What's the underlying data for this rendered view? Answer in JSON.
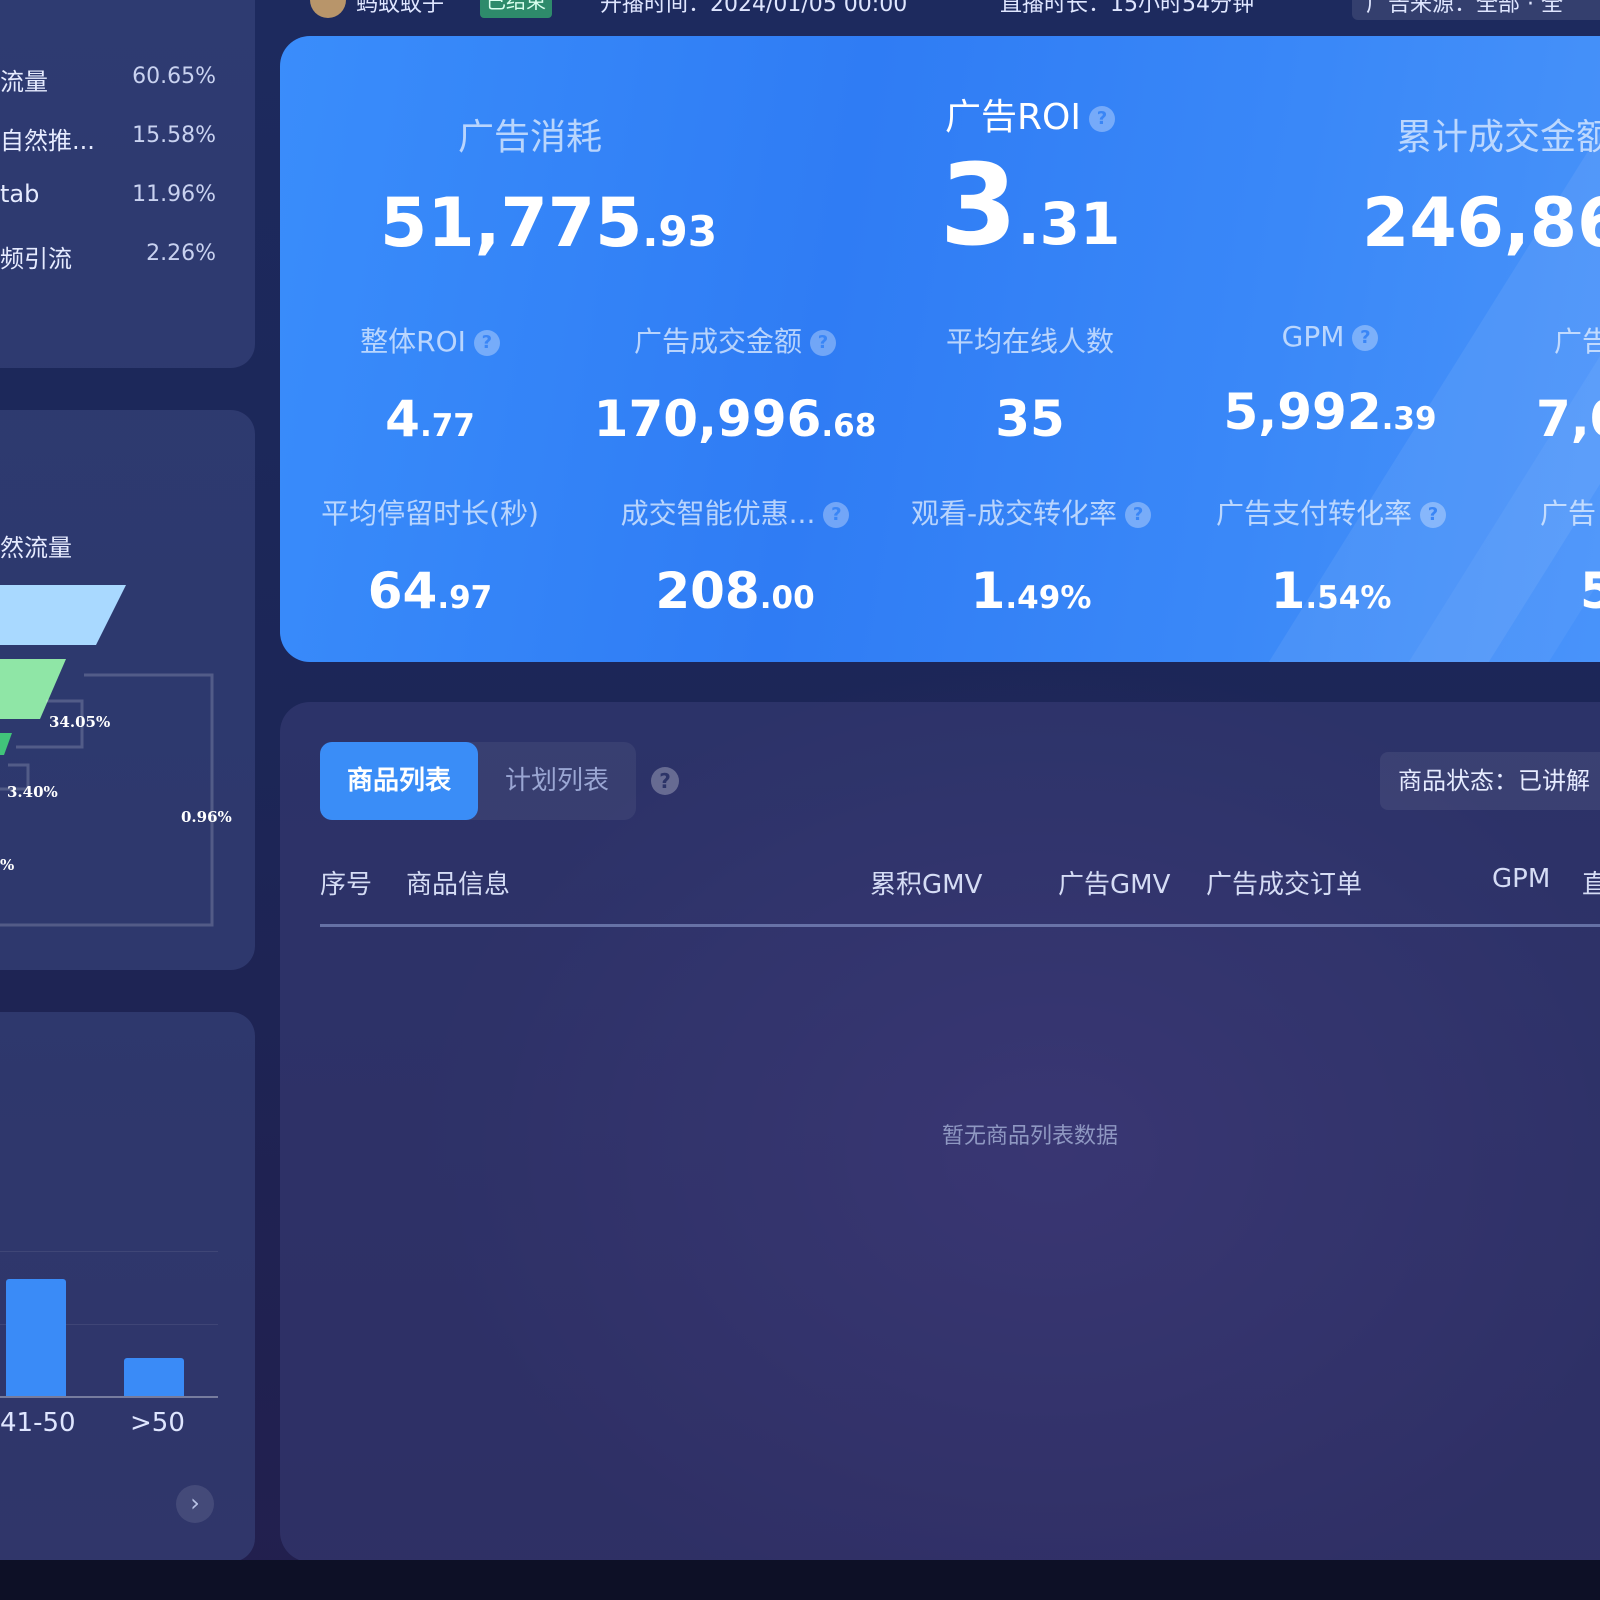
{
  "topbar": {
    "account": "蚂蚁蚁子",
    "status_badge": "已结束",
    "start_time": "开播时间：2024/01/05 00:00",
    "duration": "直播时长：15小时54分钟",
    "source_filter": "广告来源：全部 · 全"
  },
  "traffic_sources": [
    {
      "name": "流量",
      "percent": "60.65%"
    },
    {
      "name": "自然推...",
      "percent": "15.58%"
    },
    {
      "name": "tab",
      "percent": "11.96%"
    },
    {
      "name": "频引流",
      "percent": "2.26%"
    }
  ],
  "funnel": {
    "title": "然流量",
    "labels": [
      "34.05%",
      "3.40%",
      "0.96%",
      "%"
    ]
  },
  "chart_data": {
    "type": "bar",
    "categories": [
      "41-50",
      ">50"
    ],
    "values": [
      0.68,
      0.22
    ]
  },
  "metrics_primary": [
    {
      "label": "广告消耗",
      "int": "51,775",
      "dec": ".93"
    },
    {
      "label": "广告ROI",
      "int": "3",
      "dec": ".31"
    },
    {
      "label": "累计成交金额",
      "int": "246,86",
      "dec": ""
    }
  ],
  "metrics_row2": [
    {
      "label": "整体ROI",
      "int": "4",
      "dec": ".77"
    },
    {
      "label": "广告成交金额",
      "int": "170,996",
      "dec": ".68"
    },
    {
      "label": "平均在线人数",
      "int": "35",
      "dec": ""
    },
    {
      "label": "GPM",
      "int": "5,992",
      "dec": ".39"
    },
    {
      "label": "广告",
      "int": "7,0",
      "dec": ""
    }
  ],
  "metrics_row3": [
    {
      "label": "平均停留时长(秒)",
      "int": "64",
      "dec": ".97"
    },
    {
      "label": "成交智能优惠...",
      "int": "208",
      "dec": ".00"
    },
    {
      "label": "观看-成交转化率",
      "int": "1",
      "dec": ".49%"
    },
    {
      "label": "广告支付转化率",
      "int": "1",
      "dec": ".54%"
    },
    {
      "label": "广告",
      "int": "5",
      "dec": ""
    }
  ],
  "product_panel": {
    "tabs": [
      "商品列表",
      "计划列表"
    ],
    "status_filter": "商品状态：已讲解",
    "columns": [
      "序号",
      "商品信息",
      "累积GMV",
      "广告GMV",
      "广告成交订单",
      "GPM",
      "直"
    ],
    "empty_text": "暂无商品列表数据"
  },
  "colors": {
    "accent": "#3a8df7",
    "card_blue": "#2f7cf4",
    "badge_green": "#2e8b6b"
  }
}
